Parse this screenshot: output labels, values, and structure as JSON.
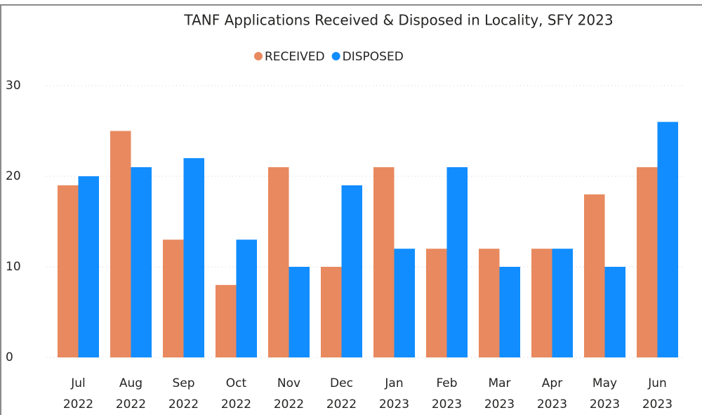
{
  "chart_data": {
    "type": "bar",
    "title": "TANF Applications Received & Disposed in Locality, SFY 2023",
    "categories": [
      [
        "Jul",
        "2022"
      ],
      [
        "Aug",
        "2022"
      ],
      [
        "Sep",
        "2022"
      ],
      [
        "Oct",
        "2022"
      ],
      [
        "Nov",
        "2022"
      ],
      [
        "Dec",
        "2022"
      ],
      [
        "Jan",
        "2023"
      ],
      [
        "Feb",
        "2023"
      ],
      [
        "Mar",
        "2023"
      ],
      [
        "Apr",
        "2023"
      ],
      [
        "May",
        "2023"
      ],
      [
        "Jun",
        "2023"
      ]
    ],
    "series": [
      {
        "name": "RECEIVED",
        "color": "#e8895f",
        "values": [
          19,
          25,
          13,
          8,
          21,
          10,
          21,
          12,
          12,
          12,
          18,
          21
        ]
      },
      {
        "name": "DISPOSED",
        "color": "#118dff",
        "values": [
          20,
          21,
          22,
          13,
          10,
          19,
          12,
          21,
          10,
          12,
          10,
          26
        ]
      }
    ],
    "ylim": [
      0,
      30
    ],
    "yticks": [
      0,
      10,
      20,
      30
    ],
    "grid": true,
    "legend": "top"
  }
}
